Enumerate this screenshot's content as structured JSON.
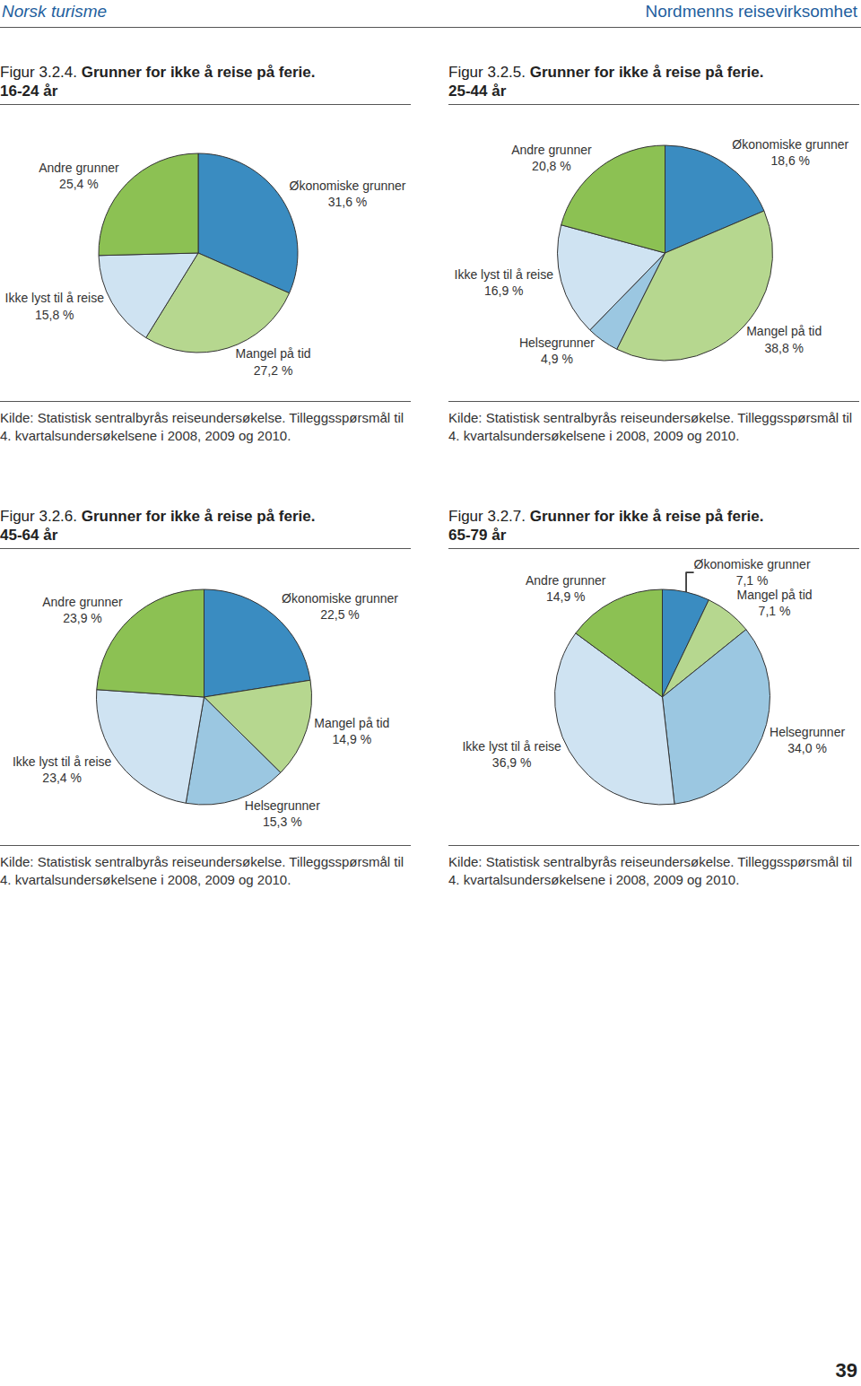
{
  "header": {
    "left": "Norsk turisme",
    "right": "Nordmenns reisevirksomhet"
  },
  "page_number": "39",
  "chart_data": [
    {
      "type": "pie",
      "label": "Figur 3.2.4.",
      "title": "Grunner for ikke å reise på ferie.",
      "subtitle": "16-24 år",
      "categories": [
        "Økonomiske grunner",
        "Mangel på tid",
        "Ikke lyst til å reise",
        "Andre grunner"
      ],
      "values": [
        31.6,
        27.2,
        15.8,
        25.4
      ],
      "value_labels": [
        "31,6 %",
        "27,2 %",
        "15,8 %",
        "25,4 %"
      ],
      "colors": [
        "#3a8cc1",
        "#b6d78f",
        "#cfe3f2",
        "#8cc153"
      ],
      "data_labels": true,
      "source": "Kilde: Statistisk sentralbyrås reiseundersøkelse. Tilleggsspørsmål til 4. kvartalsundersøkelsene i 2008, 2009 og 2010."
    },
    {
      "type": "pie",
      "label": "Figur 3.2.5.",
      "title": "Grunner for ikke å reise på ferie.",
      "subtitle": "25-44 år",
      "categories": [
        "Økonomiske grunner",
        "Mangel på tid",
        "Helsegrunner",
        "Ikke lyst til å reise",
        "Andre grunner"
      ],
      "values": [
        18.6,
        38.8,
        4.9,
        16.9,
        20.8
      ],
      "value_labels": [
        "18,6 %",
        "38,8 %",
        "4,9 %",
        "16,9 %",
        "20,8 %"
      ],
      "colors": [
        "#3a8cc1",
        "#b6d78f",
        "#9bc7e1",
        "#cfe3f2",
        "#8cc153"
      ],
      "data_labels": true,
      "source": "Kilde: Statistisk sentralbyrås reiseundersøkelse. Tilleggsspørsmål til 4. kvartalsundersøkelsene i 2008, 2009 og 2010."
    },
    {
      "type": "pie",
      "label": "Figur 3.2.6.",
      "title": "Grunner for ikke å reise på ferie.",
      "subtitle": "45-64 år",
      "categories": [
        "Økonomiske grunner",
        "Mangel på tid",
        "Helsegrunner",
        "Ikke lyst til å reise",
        "Andre grunner"
      ],
      "values": [
        22.5,
        14.9,
        15.3,
        23.4,
        23.9
      ],
      "value_labels": [
        "22,5 %",
        "14,9 %",
        "15,3 %",
        "23,4 %",
        "23,9 %"
      ],
      "colors": [
        "#3a8cc1",
        "#b6d78f",
        "#9bc7e1",
        "#cfe3f2",
        "#8cc153"
      ],
      "data_labels": true,
      "source": "Kilde: Statistisk sentralbyrås reiseundersøkelse. Tilleggsspørsmål til 4. kvartalsundersøkelsene i 2008, 2009 og 2010."
    },
    {
      "type": "pie",
      "label": "Figur 3.2.7.",
      "title": "Grunner for ikke å reise på ferie.",
      "subtitle": "65-79 år",
      "categories": [
        "Økonomiske grunner",
        "Mangel på tid",
        "Helsegrunner",
        "Ikke lyst til å reise",
        "Andre grunner"
      ],
      "values": [
        7.1,
        7.1,
        34.0,
        36.9,
        14.9
      ],
      "value_labels": [
        "7,1 %",
        "7,1 %",
        "34,0 %",
        "36,9 %",
        "14,9 %"
      ],
      "colors": [
        "#3a8cc1",
        "#b6d78f",
        "#9bc7e1",
        "#cfe3f2",
        "#8cc153"
      ],
      "data_labels": true,
      "source": "Kilde: Statistisk sentralbyrås reiseundersøkelse. Tilleggsspørsmål til 4. kvartalsundersøkelsene i 2008, 2009 og 2010."
    }
  ]
}
